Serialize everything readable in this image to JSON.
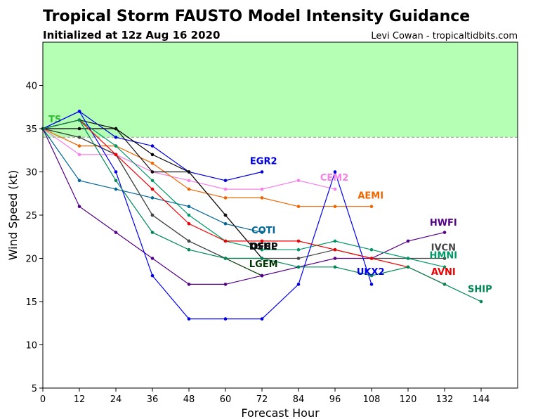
{
  "title": "Tropical Storm FAUSTO Model Intensity Guidance",
  "subtitle": "Initialized at 12z Aug 16 2020",
  "credit": "Levi Cowan - tropicaltidbits.com",
  "chart_data": {
    "type": "line",
    "xlabel": "Forecast Hour",
    "ylabel": "Wind Speed (kt)",
    "xlim": [
      0,
      156
    ],
    "ylim": [
      5,
      45
    ],
    "xticks": [
      0,
      12,
      24,
      36,
      48,
      60,
      72,
      84,
      96,
      108,
      120,
      132,
      144
    ],
    "yticks": [
      5,
      10,
      15,
      20,
      25,
      30,
      35,
      40
    ],
    "ts_threshold": 34,
    "ts_band_color": "#b4ffb4",
    "ts_label": "TS",
    "ts_label_color": "#33bb33",
    "series": [
      {
        "name": "EGR2",
        "color": "#0000dd",
        "x": [
          0,
          12,
          24,
          36,
          48,
          60,
          72
        ],
        "y": [
          35,
          37,
          34,
          33,
          30,
          29,
          30
        ]
      },
      {
        "name": "CEM2",
        "color": "#f781e8",
        "x": [
          0,
          12,
          24,
          36,
          48,
          60,
          72,
          84,
          96
        ],
        "y": [
          35,
          32,
          32,
          30,
          29,
          28,
          28,
          29,
          28
        ]
      },
      {
        "name": "AEMI",
        "color": "#ee6600",
        "x": [
          0,
          12,
          24,
          36,
          48,
          60,
          72,
          84,
          96,
          108
        ],
        "y": [
          35,
          33,
          33,
          31,
          28,
          27,
          27,
          26,
          26,
          26
        ]
      },
      {
        "name": "COTI",
        "color": "#006699",
        "x": [
          0,
          12,
          24,
          36,
          48,
          60,
          72
        ],
        "y": [
          35,
          29,
          28,
          27,
          26,
          24,
          23
        ]
      },
      {
        "name": "OFCL",
        "color": "#000000",
        "x": [
          0,
          12,
          24,
          36,
          48,
          60,
          72
        ],
        "y": [
          35,
          35,
          35,
          32,
          30,
          25,
          20
        ]
      },
      {
        "name": "DSHP",
        "color": "#111111",
        "x": [
          0,
          12,
          24,
          36,
          48,
          60,
          72
        ],
        "y": [
          35,
          36,
          35,
          30,
          30,
          25,
          20
        ]
      },
      {
        "name": "LGEM",
        "color": "#003300",
        "x": [
          0,
          12,
          24,
          36,
          48,
          60,
          72
        ],
        "y": [
          35,
          34,
          32,
          25,
          22,
          20,
          18
        ]
      },
      {
        "name": "HWFI",
        "color": "#550088",
        "x": [
          0,
          12,
          24,
          36,
          48,
          60,
          72,
          84,
          96,
          108,
          120,
          132
        ],
        "y": [
          35,
          26,
          23,
          20,
          17,
          17,
          18,
          19,
          20,
          20,
          22,
          23
        ]
      },
      {
        "name": "IVCN",
        "color": "#444444",
        "x": [
          0,
          12,
          24,
          36,
          48,
          60,
          72,
          84,
          96,
          108,
          120,
          132
        ],
        "y": [
          35,
          34,
          32,
          25,
          22,
          20,
          20,
          20,
          21,
          20,
          20,
          20
        ]
      },
      {
        "name": "HMNI",
        "color": "#009966",
        "x": [
          0,
          12,
          24,
          36,
          48,
          60,
          72,
          84,
          96,
          108,
          120,
          132
        ],
        "y": [
          35,
          36,
          33,
          29,
          25,
          22,
          21,
          21,
          22,
          21,
          20,
          19
        ]
      },
      {
        "name": "UKX2",
        "color": "#0000ee",
        "x": [
          0,
          12,
          24,
          36,
          48,
          60,
          72,
          84,
          96,
          108
        ],
        "y": [
          35,
          37,
          30,
          18,
          13,
          13,
          13,
          17,
          30,
          17
        ]
      },
      {
        "name": "AVNI",
        "color": "#ee0000",
        "x": [
          0,
          12,
          24,
          36,
          48,
          60,
          72,
          84,
          96,
          108,
          120,
          132
        ],
        "y": [
          35,
          36,
          32,
          28,
          24,
          22,
          22,
          22,
          21,
          20,
          19,
          17
        ]
      },
      {
        "name": "SHIP",
        "color": "#008855",
        "x": [
          0,
          12,
          24,
          36,
          48,
          60,
          72,
          84,
          96,
          108,
          120,
          132,
          144
        ],
        "y": [
          35,
          36,
          29,
          23,
          21,
          20,
          20,
          19,
          19,
          18,
          19,
          17,
          15
        ]
      }
    ],
    "labels": [
      {
        "text": "EGR2",
        "color": "#0000dd",
        "x": 72.5,
        "y": 30.9
      },
      {
        "text": "CEM2",
        "color": "#f781e8",
        "x": 95.8,
        "y": 29.0
      },
      {
        "text": "AEMI",
        "color": "#ee6600",
        "x": 107.7,
        "y": 26.9
      },
      {
        "text": "COTI",
        "color": "#006699",
        "x": 72.5,
        "y": 22.9
      },
      {
        "text": "OFCL",
        "color": "#000000",
        "x": 72.5,
        "y": 21.0
      },
      {
        "text": "DSHP",
        "color": "#111111",
        "x": 72.5,
        "y": 21.0
      },
      {
        "text": "LGEM",
        "color": "#003300",
        "x": 72.5,
        "y": 19.0
      },
      {
        "text": "HWFI",
        "color": "#550088",
        "x": 131.6,
        "y": 23.8
      },
      {
        "text": "IVCN",
        "color": "#444444",
        "x": 131.6,
        "y": 20.9
      },
      {
        "text": "HMNI",
        "color": "#009966",
        "x": 131.6,
        "y": 20.0
      },
      {
        "text": "UKX2",
        "color": "#0000ee",
        "x": 107.7,
        "y": 18.1
      },
      {
        "text": "AVNI",
        "color": "#ee0000",
        "x": 131.6,
        "y": 18.1
      },
      {
        "text": "SHIP",
        "color": "#008855",
        "x": 143.6,
        "y": 16.1
      }
    ]
  }
}
